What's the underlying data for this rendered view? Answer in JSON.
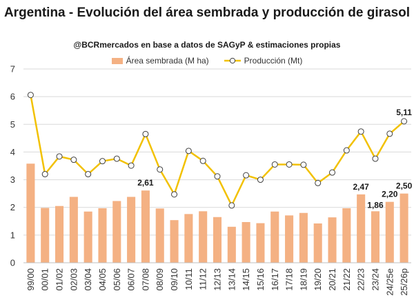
{
  "colors": {
    "bar": "#F4B183",
    "line": "#F2C100",
    "marker_fill": "#FFFFFF",
    "marker_stroke": "#404040",
    "grid": "#D9D9D9"
  },
  "chart_data": {
    "type": "bar",
    "title": "Argentina - Evolución del área sembrada y producción de girasol",
    "subtitle": "@BCRmercados en base a datos de SAGyP & estimaciones propias",
    "legend_position": "top",
    "grid": true,
    "ylim": [
      0,
      7
    ],
    "yticks": [
      0,
      1,
      2,
      3,
      4,
      5,
      6,
      7
    ],
    "categories": [
      "99/00",
      "00/01",
      "01/02",
      "02/03",
      "03/04",
      "04/05",
      "05/06",
      "06/07",
      "07/08",
      "08/09",
      "09/10",
      "10/11",
      "11/12",
      "12/13",
      "13/14",
      "14/15",
      "15/16",
      "16/17",
      "17/18",
      "18/19",
      "19/20",
      "20/21",
      "21/22",
      "22/23",
      "23/24",
      "24/25e",
      "25/26p"
    ],
    "series": [
      {
        "name": "Área sembrada (M ha)",
        "type": "bar",
        "values": [
          3.58,
          1.98,
          2.05,
          2.38,
          1.85,
          1.97,
          2.23,
          2.38,
          2.61,
          1.96,
          1.54,
          1.76,
          1.86,
          1.65,
          1.3,
          1.47,
          1.43,
          1.85,
          1.71,
          1.8,
          1.42,
          1.64,
          1.97,
          2.47,
          1.86,
          2.2,
          2.5
        ]
      },
      {
        "name": "Producción (Mt)",
        "type": "line",
        "values": [
          6.06,
          3.2,
          3.84,
          3.72,
          3.2,
          3.67,
          3.76,
          3.51,
          4.65,
          3.37,
          2.47,
          4.04,
          3.68,
          3.12,
          2.07,
          3.16,
          3.0,
          3.55,
          3.55,
          3.54,
          2.88,
          3.26,
          4.06,
          4.74,
          3.76,
          4.66,
          5.11
        ]
      }
    ],
    "data_labels": [
      {
        "series": 0,
        "index": 8,
        "text": "2,61"
      },
      {
        "series": 0,
        "index": 23,
        "text": "2,47"
      },
      {
        "series": 0,
        "index": 24,
        "text": "1,86"
      },
      {
        "series": 0,
        "index": 25,
        "text": "2,20"
      },
      {
        "series": 0,
        "index": 26,
        "text": "2,50"
      },
      {
        "series": 1,
        "index": 26,
        "text": "5,11"
      }
    ]
  }
}
